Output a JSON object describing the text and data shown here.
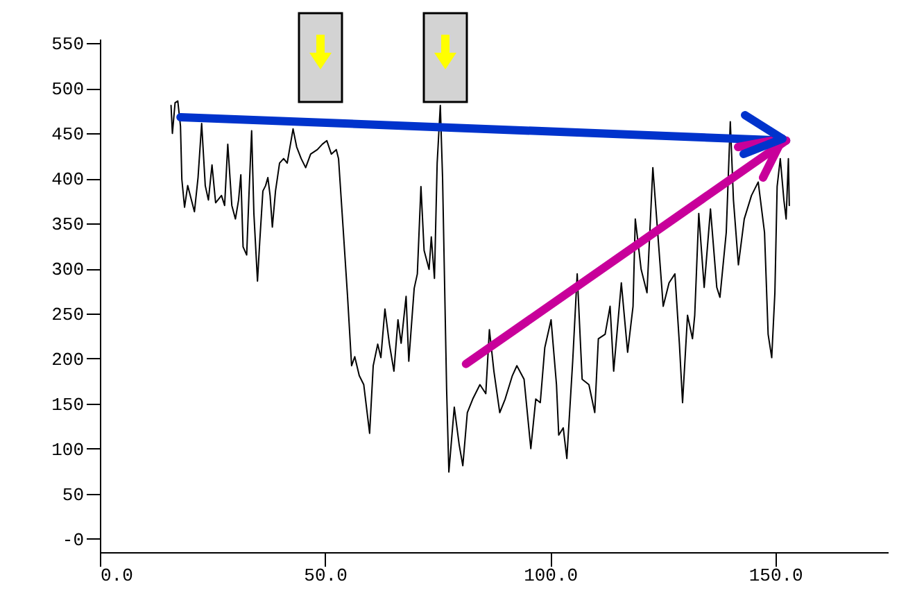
{
  "chart_data": {
    "type": "line",
    "series": [
      {
        "color": "#000000",
        "x": [
          15.8,
          16.1,
          16.7,
          17.3,
          17.9,
          18.2,
          18.8,
          19.5,
          21.0,
          21.8,
          22.6,
          23.4,
          24.1,
          24.9,
          25.7,
          27.0,
          27.7,
          28.4,
          29.3,
          30.1,
          30.8,
          31.3,
          31.8,
          32.6,
          33.1,
          33.7,
          34.2,
          35.0,
          35.5,
          36.2,
          36.8,
          37.3,
          37.8,
          38.3,
          39.0,
          39.9,
          40.8,
          41.6,
          42.9,
          43.7,
          44.7,
          45.7,
          46.8,
          48.3,
          49.4,
          50.4,
          51.4,
          52.5,
          53.0,
          54.0,
          55.0,
          55.9,
          56.6,
          57.6,
          58.6,
          59.9,
          60.7,
          61.7,
          62.4,
          63.3,
          64.3,
          65.3,
          66.2,
          66.9,
          68.0,
          68.6,
          69.8,
          70.5,
          71.3,
          72.0,
          73.1,
          73.6,
          74.3,
          74.9,
          75.6,
          76.1,
          77.0,
          77.5,
          78.7,
          79.8,
          80.6,
          81.6,
          82.8,
          84.4,
          85.7,
          86.5,
          87.5,
          88.8,
          90.0,
          91.6,
          92.6,
          94.2,
          95.7,
          96.8,
          97.8,
          98.8,
          100.2,
          101.4,
          101.9,
          102.9,
          103.7,
          105.0,
          106.0,
          107.1,
          108.6,
          109.9,
          110.7,
          112.2,
          113.3,
          114.1,
          115.8,
          117.2,
          118.4,
          118.9,
          120.2,
          121.5,
          122.8,
          124.1,
          125.1,
          126.4,
          127.7,
          128.7,
          129.4,
          130.5,
          131.6,
          132.1,
          133.0,
          134.2,
          135.6,
          137.0,
          137.7,
          139.1,
          140.0,
          140.7,
          141.8,
          143.1,
          144.7,
          146.2,
          147.6,
          148.4,
          149.2,
          149.9,
          150.4,
          151.1,
          151.9,
          152.4,
          152.9,
          153.1
        ],
        "values": [
          481,
          450,
          484,
          486,
          458,
          399,
          368,
          392,
          363,
          401,
          461,
          392,
          376,
          415,
          373,
          381,
          370,
          438,
          370,
          355,
          376,
          404,
          324,
          315,
          381,
          453,
          361,
          286,
          330,
          386,
          392,
          401,
          381,
          346,
          386,
          417,
          422,
          417,
          455,
          435,
          422,
          412,
          427,
          432,
          438,
          442,
          427,
          432,
          422,
          346,
          269,
          192,
          202,
          181,
          171,
          117,
          192,
          216,
          201,
          255,
          216,
          186,
          243,
          217,
          269,
          197,
          278,
          294,
          391,
          320,
          299,
          335,
          289,
          417,
          481,
          401,
          166,
          74,
          146,
          104,
          81,
          140,
          155,
          171,
          161,
          232,
          186,
          140,
          155,
          181,
          192,
          177,
          100,
          155,
          151,
          212,
          243,
          171,
          115,
          123,
          89,
          197,
          294,
          177,
          171,
          140,
          222,
          227,
          258,
          186,
          284,
          207,
          258,
          355,
          299,
          273,
          412,
          325,
          258,
          284,
          294,
          216,
          151,
          248,
          222,
          248,
          361,
          279,
          366,
          279,
          268,
          340,
          463,
          376,
          304,
          355,
          381,
          396,
          340,
          227,
          201,
          273,
          391,
          422,
          376,
          355,
          422,
          370
        ]
      },
      {
        "type": "line",
        "color": "#0033cc",
        "x": [
          17.9,
          152.4
        ],
        "values": [
          468,
          442
        ]
      },
      {
        "type": "line",
        "color": "#c8009a",
        "x": [
          81.3,
          152.4
        ],
        "values": [
          194,
          442
        ]
      }
    ],
    "xlim": [
      0,
      175
    ],
    "ylim": [
      -15,
      555
    ],
    "xticks": [
      {
        "value": 0,
        "label": "0.0"
      },
      {
        "value": 50,
        "label": "50.0"
      },
      {
        "value": 100,
        "label": "100.0"
      },
      {
        "value": 150,
        "label": "150.0"
      }
    ],
    "yticks": [
      {
        "value": 0,
        "label": "-0"
      },
      50,
      100,
      150,
      200,
      250,
      300,
      350,
      400,
      450,
      500,
      550
    ]
  }
}
